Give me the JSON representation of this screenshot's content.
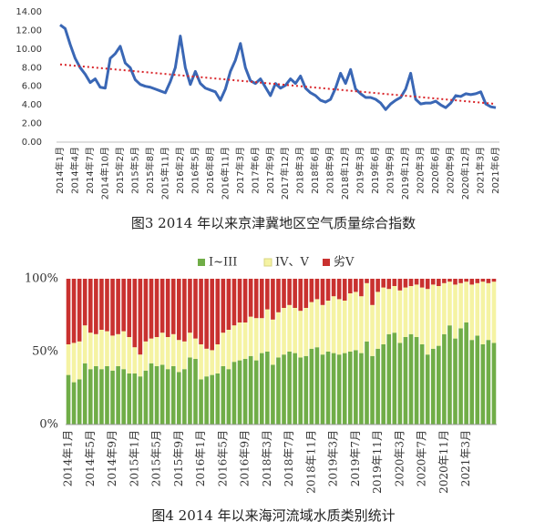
{
  "chart_data": [
    {
      "type": "line",
      "caption": "图3 2014 年以来京津冀地区空气质量综合指数",
      "categories": [
        "2014年1月",
        null,
        null,
        "2014年4月",
        null,
        null,
        "2014年7月",
        null,
        null,
        "2014年10月",
        null,
        null,
        "2015年2月",
        null,
        null,
        "2015年5月",
        null,
        null,
        "2015年8月",
        null,
        null,
        "2015年11月",
        null,
        null,
        "2016年2月",
        null,
        null,
        "2016年5月",
        null,
        null,
        "2016年8月",
        null,
        null,
        "2016年11月",
        null,
        null,
        "2017年3月",
        null,
        null,
        "2017年6月",
        null,
        null,
        "2017年9月",
        null,
        null,
        "2017年12月",
        null,
        null,
        "2018年3月",
        null,
        null,
        "2018年6月",
        null,
        null,
        "2018年9月",
        null,
        null,
        "2018年12月",
        null,
        null,
        "2019年3月",
        null,
        null,
        "2019年6月",
        null,
        null,
        "2019年9月",
        null,
        null,
        "2019年12月",
        null,
        null,
        "2020年3月",
        null,
        null,
        "2020年6月",
        null,
        null,
        "2020年9月",
        null,
        null,
        "2020年12月",
        null,
        null,
        "2021年3月",
        null,
        null,
        "2021年6月"
      ],
      "values": [
        12.6,
        12.2,
        10.5,
        9.0,
        8.0,
        7.3,
        6.4,
        6.8,
        5.9,
        5.8,
        9.0,
        9.5,
        10.3,
        8.5,
        8.0,
        6.7,
        6.2,
        6.0,
        5.9,
        5.7,
        5.5,
        5.3,
        6.5,
        8.0,
        11.4,
        8.0,
        6.2,
        7.6,
        6.3,
        5.8,
        5.6,
        5.4,
        4.5,
        5.7,
        7.6,
        8.8,
        10.6,
        8.0,
        6.6,
        6.3,
        6.8,
        5.9,
        5.0,
        6.3,
        5.8,
        6.1,
        6.8,
        6.3,
        7.1,
        5.8,
        5.3,
        5.0,
        4.5,
        4.3,
        4.6,
        5.8,
        7.4,
        6.3,
        7.8,
        5.7,
        5.2,
        4.8,
        4.8,
        4.6,
        4.2,
        3.5,
        4.1,
        4.5,
        4.8,
        5.7,
        7.4,
        4.6,
        4.1,
        4.2,
        4.2,
        4.4,
        4.0,
        3.7,
        4.2,
        5.0,
        4.9,
        5.2,
        5.1,
        5.2,
        5.4,
        4.1,
        3.8,
        3.7
      ],
      "color": "#3a67b5",
      "trendline": {
        "color": "#d9262b",
        "values": [
          8.35,
          4.1
        ]
      },
      "ylim": [
        0,
        14
      ],
      "yticks": [
        {
          "value": 0,
          "label": "0.00"
        },
        {
          "value": 2,
          "label": "2.00"
        },
        {
          "value": 4,
          "label": "4.00"
        },
        {
          "value": 6,
          "label": "6.00"
        },
        {
          "value": 8,
          "label": "8.00"
        },
        {
          "value": 10,
          "label": "10.00"
        },
        {
          "value": 12,
          "label": "12.00"
        },
        {
          "value": 14,
          "label": "14.00"
        }
      ],
      "grid": false
    },
    {
      "type": "bar",
      "stacked": true,
      "caption": "图4 2014 年以来海河流域水质类别统计",
      "categories": [
        "2014年1月",
        null,
        null,
        null,
        "2014年5月",
        null,
        null,
        null,
        "2014年9月",
        null,
        null,
        null,
        "2015年1月",
        null,
        null,
        null,
        "2015年5月",
        null,
        null,
        null,
        "2015年9月",
        null,
        null,
        null,
        "2016年1月",
        null,
        null,
        null,
        "2016年5月",
        null,
        null,
        null,
        "2016年9月",
        null,
        null,
        null,
        "2018年3月",
        null,
        null,
        null,
        "2018年7月",
        null,
        null,
        null,
        "2018年11月",
        null,
        null,
        null,
        "2019年3月",
        null,
        null,
        null,
        "2019年7月",
        null,
        null,
        null,
        "2019年11月",
        null,
        null,
        null,
        "2020年3月",
        null,
        null,
        null,
        "2020年7月",
        null,
        null,
        null,
        "2020年11月",
        null,
        null,
        null,
        "2021年3月",
        null,
        null,
        null,
        null,
        null
      ],
      "series": [
        {
          "name": "I~III",
          "color": "#70ad47",
          "values": [
            34,
            29,
            31,
            42,
            38,
            40,
            38,
            40,
            37,
            40,
            38,
            35,
            35,
            33,
            37,
            42,
            40,
            41,
            38,
            40,
            36,
            38,
            46,
            45,
            31,
            33,
            34,
            35,
            40,
            38,
            43,
            44,
            45,
            47,
            44,
            49,
            50,
            41,
            46,
            48,
            50,
            49,
            46,
            47,
            52,
            53,
            48,
            50,
            49,
            48,
            49,
            50,
            51,
            49,
            57,
            47,
            52,
            55,
            62,
            63,
            56,
            60,
            62,
            60,
            55,
            48,
            52,
            54,
            62,
            68,
            59,
            66,
            70,
            58,
            61,
            55,
            58,
            56
          ]
        },
        {
          "name": "IV、V",
          "color": "#f5f3a3",
          "values": [
            21,
            27,
            26,
            26,
            25,
            22,
            27,
            24,
            24,
            22,
            26,
            25,
            18,
            15,
            20,
            17,
            20,
            22,
            22,
            22,
            22,
            19,
            17,
            14,
            24,
            19,
            17,
            20,
            23,
            27,
            25,
            26,
            25,
            27,
            29,
            24,
            29,
            31,
            31,
            32,
            32,
            31,
            32,
            33,
            32,
            33,
            34,
            35,
            39,
            38,
            36,
            40,
            40,
            39,
            40,
            35,
            39,
            39,
            31,
            32,
            36,
            34,
            33,
            36,
            39,
            45,
            44,
            41,
            35,
            30,
            37,
            31,
            28,
            38,
            36,
            43,
            39,
            42
          ]
        },
        {
          "name": "劣V",
          "color": "#c9312f",
          "values": [
            45,
            44,
            43,
            32,
            37,
            38,
            35,
            36,
            39,
            38,
            36,
            40,
            47,
            52,
            43,
            41,
            40,
            37,
            40,
            38,
            42,
            43,
            37,
            41,
            45,
            48,
            49,
            45,
            37,
            35,
            32,
            30,
            30,
            26,
            27,
            27,
            21,
            28,
            23,
            20,
            18,
            20,
            22,
            20,
            16,
            14,
            18,
            15,
            12,
            14,
            15,
            10,
            9,
            12,
            3,
            18,
            9,
            6,
            7,
            5,
            8,
            6,
            5,
            4,
            6,
            7,
            4,
            5,
            3,
            2,
            4,
            3,
            2,
            4,
            3,
            2,
            3,
            2
          ]
        }
      ],
      "ylim": [
        0,
        100
      ],
      "yticks": [
        {
          "value": 0,
          "label": "0%"
        },
        {
          "value": 50,
          "label": "50%"
        },
        {
          "value": 100,
          "label": "100%"
        }
      ],
      "legend": "top",
      "grid": false
    }
  ]
}
